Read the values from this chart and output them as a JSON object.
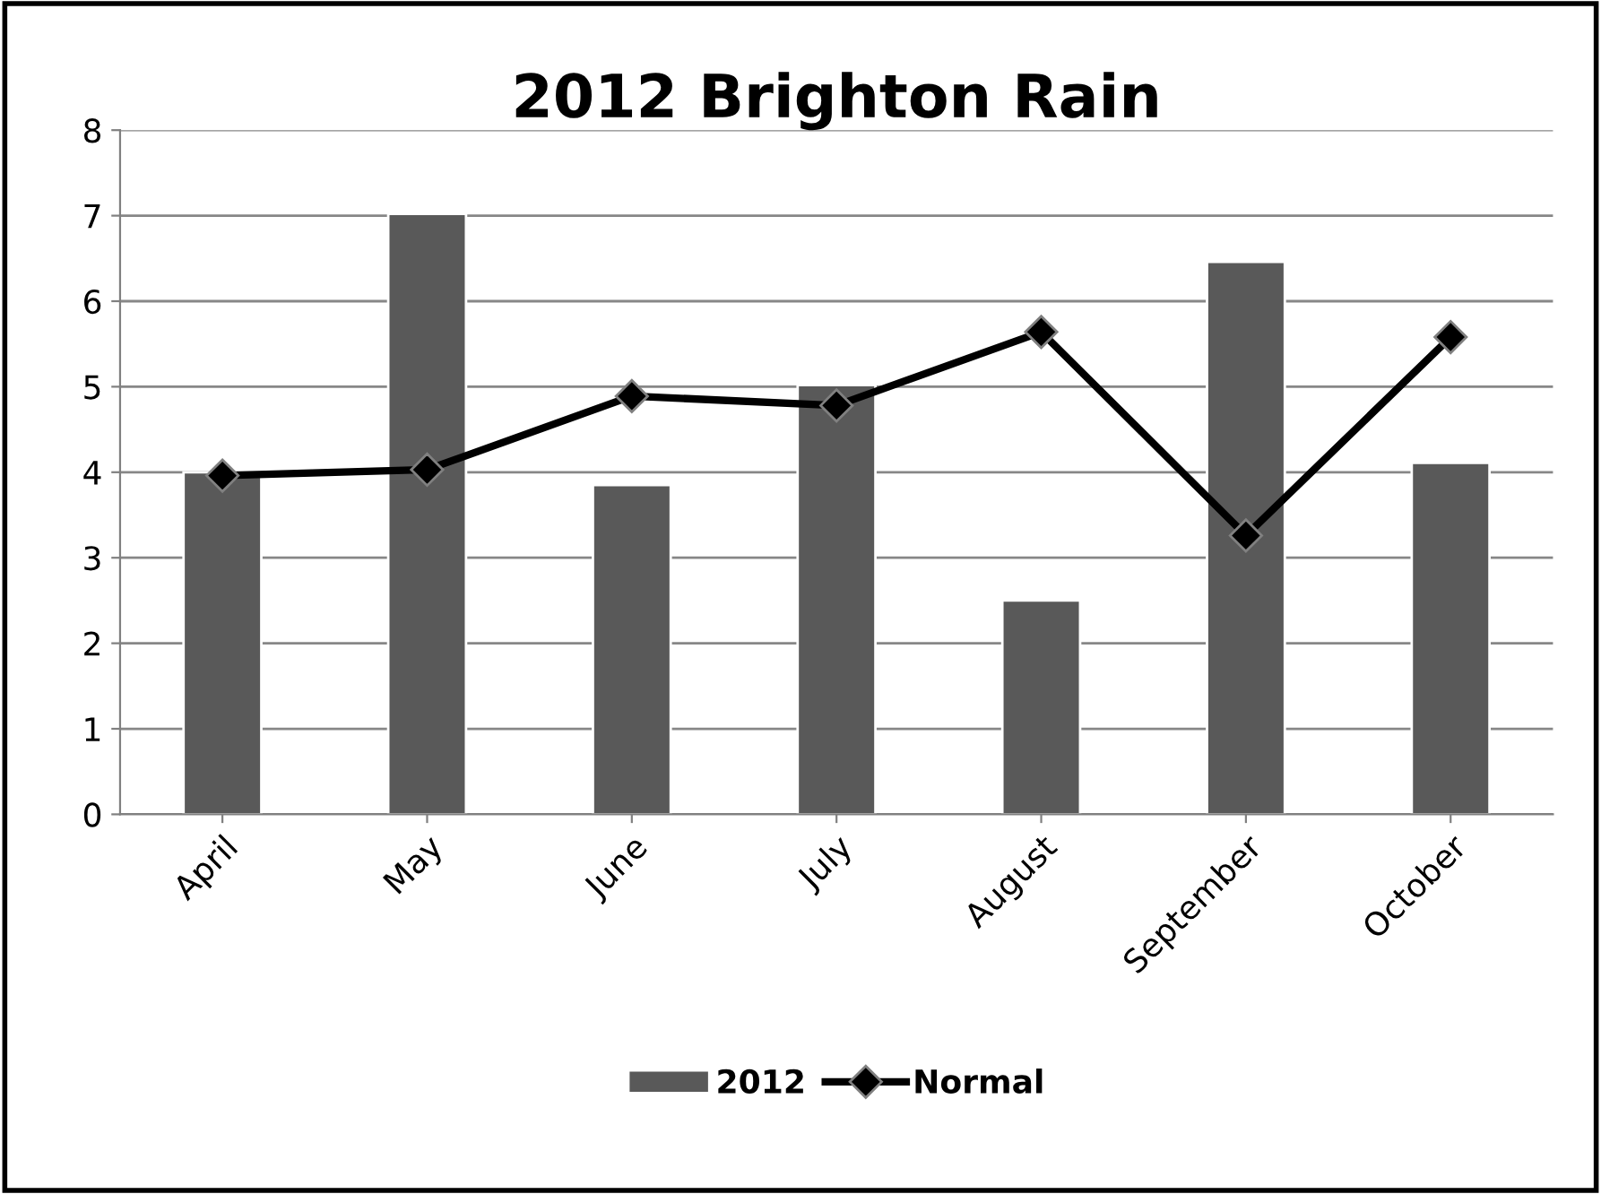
{
  "chart_data": {
    "type": "bar",
    "title": "2012 Brighton Rain",
    "categories": [
      "April",
      "May",
      "June",
      "July",
      "August",
      "September",
      "October"
    ],
    "series": [
      {
        "name": "2012",
        "color": "#595959",
        "values": [
          4.0,
          7.02,
          3.85,
          5.02,
          2.5,
          6.46,
          4.11
        ]
      },
      {
        "name": "Normal",
        "type": "line",
        "color": "#000000",
        "marker": "diamond",
        "values": [
          3.96,
          4.03,
          4.89,
          4.78,
          5.64,
          3.26,
          5.58
        ]
      }
    ],
    "ylim": [
      0,
      8
    ],
    "yticks": [
      0,
      1,
      2,
      3,
      4,
      5,
      6,
      7,
      8
    ],
    "grid": "y",
    "legend": "bottom"
  }
}
